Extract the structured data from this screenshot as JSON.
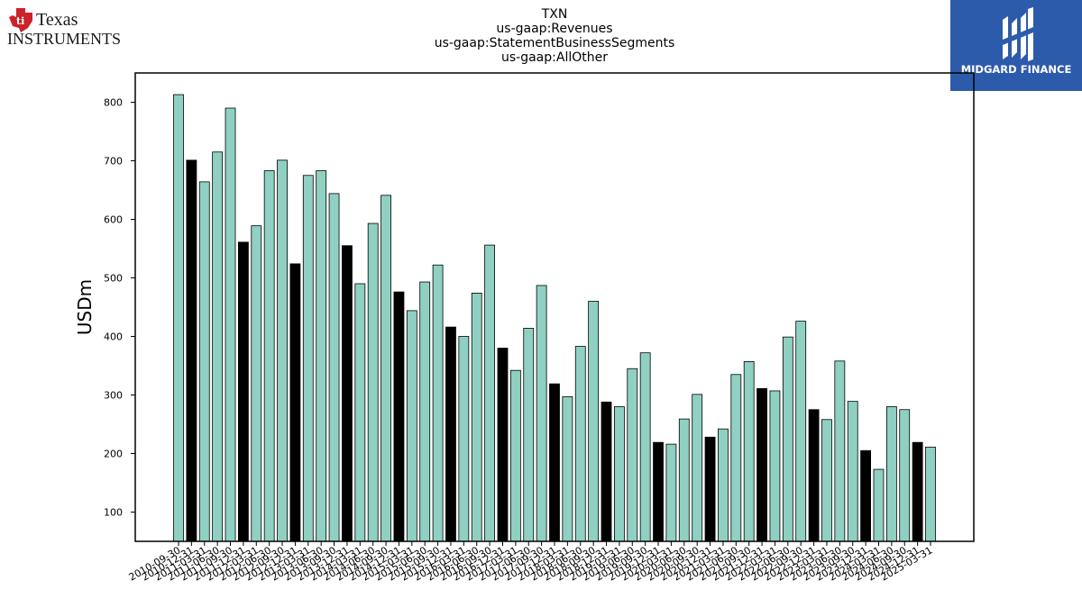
{
  "logos": {
    "left": {
      "line1": "Texas",
      "line2": "Instruments",
      "brand_color": "#cc2229"
    },
    "right": {
      "text": "MIDGARD FINANCE",
      "bg_color": "#2d5bab"
    }
  },
  "chart_data": {
    "type": "bar",
    "title": [
      "TXN",
      "us-gaap:Revenues",
      "us-gaap:StatementBusinessSegments",
      "us-gaap:AllOther"
    ],
    "ylabel": "USDm",
    "xlabel": "",
    "ylim": [
      50,
      850
    ],
    "yticks": [
      100,
      200,
      300,
      400,
      500,
      600,
      700,
      800
    ],
    "grid": false,
    "colors": {
      "quarter": "#8fd0c2",
      "annual": "#000000",
      "edge": "#000000"
    },
    "categories": [
      "2010-09-30",
      "2010-12-31",
      "2011-03-31",
      "2011-06-30",
      "2011-09-30",
      "2011-12-31",
      "2012-03-31",
      "2012-06-30",
      "2012-09-30",
      "2012-12-31",
      "2013-03-31",
      "2013-06-30",
      "2013-09-30",
      "2013-12-31",
      "2014-03-31",
      "2014-06-30",
      "2014-09-30",
      "2014-12-31",
      "2015-03-31",
      "2015-06-30",
      "2015-09-30",
      "2015-12-31",
      "2016-03-31",
      "2016-06-30",
      "2016-09-30",
      "2016-12-31",
      "2017-03-31",
      "2017-06-30",
      "2017-09-30",
      "2017-12-31",
      "2018-03-31",
      "2018-06-30",
      "2018-09-30",
      "2018-12-31",
      "2019-03-31",
      "2019-06-30",
      "2019-09-30",
      "2019-12-31",
      "2020-03-31",
      "2020-06-30",
      "2020-09-30",
      "2020-12-31",
      "2021-03-31",
      "2021-06-30",
      "2021-09-30",
      "2021-12-31",
      "2022-03-31",
      "2022-06-30",
      "2022-09-30",
      "2022-12-31",
      "2023-03-31",
      "2023-06-30",
      "2023-09-30",
      "2023-12-31",
      "2024-03-31",
      "2024-06-30",
      "2024-09-30",
      "2024-12-31",
      "2025-03-31"
    ],
    "values": [
      813,
      701,
      664,
      715,
      790,
      561,
      589,
      683,
      701,
      524,
      675,
      683,
      644,
      555,
      490,
      593,
      641,
      476,
      444,
      493,
      522,
      416,
      400,
      474,
      556,
      380,
      342,
      414,
      487,
      319,
      297,
      383,
      460,
      288,
      280,
      345,
      372,
      219,
      216,
      259,
      301,
      228,
      242,
      335,
      357,
      311,
      307,
      399,
      426,
      275,
      258,
      358,
      289,
      205,
      173,
      280,
      275,
      219,
      211
    ],
    "annual": [
      false,
      true,
      false,
      false,
      false,
      true,
      false,
      false,
      false,
      true,
      false,
      false,
      false,
      true,
      false,
      false,
      false,
      true,
      false,
      false,
      false,
      true,
      false,
      false,
      false,
      true,
      false,
      false,
      false,
      true,
      false,
      false,
      false,
      true,
      false,
      false,
      false,
      true,
      false,
      false,
      false,
      true,
      false,
      false,
      false,
      true,
      false,
      false,
      false,
      true,
      false,
      false,
      false,
      true,
      false,
      false,
      false,
      true,
      false
    ]
  }
}
